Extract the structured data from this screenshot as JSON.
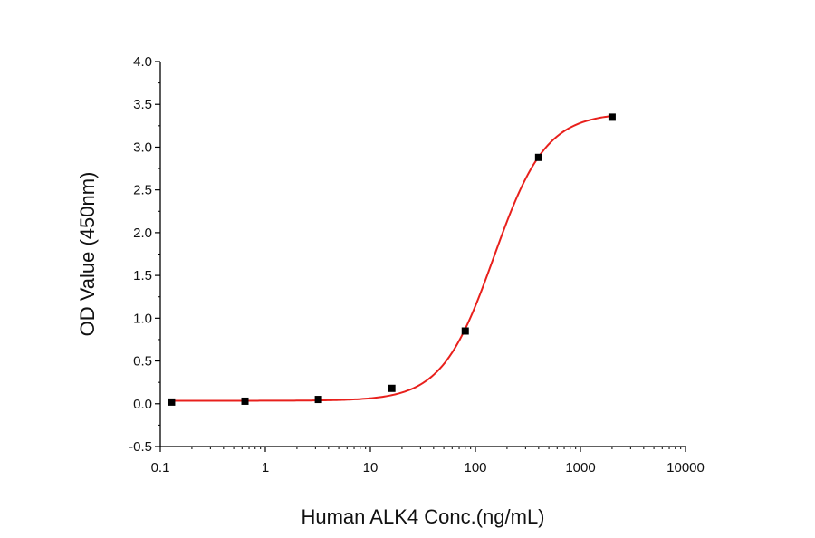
{
  "chart_data": {
    "type": "scatter",
    "xlabel": "Human ALK4 Conc.(ng/mL)",
    "ylabel": "OD Value (450nm)",
    "x_scale": "log",
    "xlim": [
      0.1,
      10000
    ],
    "ylim": [
      -0.5,
      4.0
    ],
    "x_ticks": [
      "0.1",
      "1",
      "10",
      "100",
      "1000",
      "10000"
    ],
    "y_ticks": [
      "-0.5",
      "0.0",
      "0.5",
      "1.0",
      "1.5",
      "2.0",
      "2.5",
      "3.0",
      "3.5",
      "4.0"
    ],
    "grid": false,
    "legend": "none",
    "series": [
      {
        "kind": "points",
        "marker": "square",
        "color": "#000000",
        "points": [
          {
            "x": 0.128,
            "y": 0.02
          },
          {
            "x": 0.64,
            "y": 0.03
          },
          {
            "x": 3.2,
            "y": 0.05
          },
          {
            "x": 16,
            "y": 0.18
          },
          {
            "x": 80,
            "y": 0.85
          },
          {
            "x": 400,
            "y": 2.88
          },
          {
            "x": 2000,
            "y": 3.35
          }
        ]
      },
      {
        "kind": "fit",
        "color": "#e8201c",
        "model": "4PL",
        "params": {
          "bottom": 0.035,
          "top": 3.4,
          "ec50": 150,
          "hill": 1.75
        },
        "x_range": [
          0.128,
          2000
        ]
      }
    ]
  }
}
